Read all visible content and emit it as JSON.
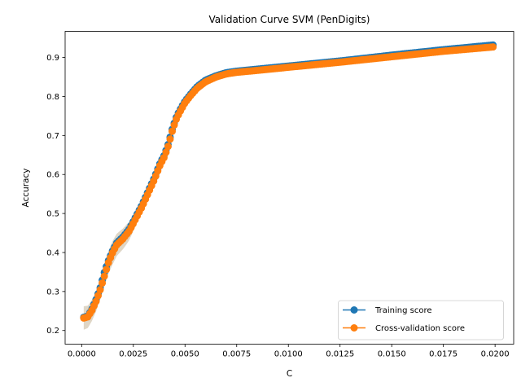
{
  "chart_data": {
    "type": "line",
    "title": "Validation Curve SVM (PenDigits)",
    "xlabel": "C",
    "ylabel": "Accuracy",
    "xlim": [
      -0.0008,
      0.0209
    ],
    "ylim": [
      0.165,
      0.967
    ],
    "grid": false,
    "legend_position": "lower-right",
    "x_ticks": [
      0.0,
      0.0025,
      0.005,
      0.0075,
      0.01,
      0.0125,
      0.015,
      0.0175,
      0.02
    ],
    "x_tick_labels": [
      "0.0000",
      "0.0025",
      "0.0050",
      "0.0075",
      "0.0100",
      "0.0125",
      "0.0150",
      "0.0175",
      "0.0200"
    ],
    "y_ticks": [
      0.2,
      0.3,
      0.4,
      0.5,
      0.6,
      0.7,
      0.8,
      0.9
    ],
    "y_tick_labels": [
      "0.2",
      "0.3",
      "0.4",
      "0.5",
      "0.6",
      "0.7",
      "0.8",
      "0.9"
    ],
    "x_range": [
      0.0001,
      0.0199
    ],
    "num_points": 200,
    "series": [
      {
        "name": "Training score",
        "color": "#1f77b4",
        "marker": "circle",
        "anchors": [
          [
            0.0001,
            0.234
          ],
          [
            0.0003,
            0.237
          ],
          [
            0.0005,
            0.255
          ],
          [
            0.0007,
            0.28
          ],
          [
            0.0009,
            0.31
          ],
          [
            0.0011,
            0.35
          ],
          [
            0.0013,
            0.38
          ],
          [
            0.0015,
            0.405
          ],
          [
            0.0017,
            0.425
          ],
          [
            0.002,
            0.44
          ],
          [
            0.0023,
            0.46
          ],
          [
            0.0026,
            0.49
          ],
          [
            0.0029,
            0.52
          ],
          [
            0.0032,
            0.555
          ],
          [
            0.0035,
            0.59
          ],
          [
            0.0038,
            0.63
          ],
          [
            0.004,
            0.65
          ],
          [
            0.0042,
            0.68
          ],
          [
            0.0044,
            0.72
          ],
          [
            0.0046,
            0.75
          ],
          [
            0.0048,
            0.77
          ],
          [
            0.005,
            0.788
          ],
          [
            0.0053,
            0.808
          ],
          [
            0.0056,
            0.826
          ],
          [
            0.006,
            0.842
          ],
          [
            0.0065,
            0.853
          ],
          [
            0.007,
            0.861
          ],
          [
            0.0075,
            0.865
          ],
          [
            0.0085,
            0.87
          ],
          [
            0.01,
            0.878
          ],
          [
            0.0125,
            0.891
          ],
          [
            0.015,
            0.906
          ],
          [
            0.0175,
            0.92
          ],
          [
            0.0199,
            0.932
          ]
        ]
      },
      {
        "name": "Cross-validation score",
        "color": "#ff7f0e",
        "marker": "circle",
        "anchors": [
          [
            0.0001,
            0.232
          ],
          [
            0.0003,
            0.235
          ],
          [
            0.0005,
            0.252
          ],
          [
            0.0007,
            0.275
          ],
          [
            0.0009,
            0.305
          ],
          [
            0.0011,
            0.34
          ],
          [
            0.0013,
            0.375
          ],
          [
            0.0015,
            0.4
          ],
          [
            0.0017,
            0.42
          ],
          [
            0.002,
            0.435
          ],
          [
            0.0023,
            0.455
          ],
          [
            0.0026,
            0.485
          ],
          [
            0.0029,
            0.515
          ],
          [
            0.0032,
            0.55
          ],
          [
            0.0035,
            0.585
          ],
          [
            0.0038,
            0.625
          ],
          [
            0.004,
            0.645
          ],
          [
            0.0042,
            0.675
          ],
          [
            0.0044,
            0.715
          ],
          [
            0.0046,
            0.745
          ],
          [
            0.0048,
            0.765
          ],
          [
            0.005,
            0.784
          ],
          [
            0.0053,
            0.804
          ],
          [
            0.0056,
            0.822
          ],
          [
            0.006,
            0.838
          ],
          [
            0.0065,
            0.85
          ],
          [
            0.007,
            0.858
          ],
          [
            0.0075,
            0.862
          ],
          [
            0.0085,
            0.867
          ],
          [
            0.01,
            0.875
          ],
          [
            0.0125,
            0.888
          ],
          [
            0.015,
            0.902
          ],
          [
            0.0175,
            0.916
          ],
          [
            0.0199,
            0.927
          ]
        ],
        "band_halfwidth": [
          [
            0.0001,
            0.03
          ],
          [
            0.0008,
            0.025
          ],
          [
            0.0015,
            0.03
          ],
          [
            0.0022,
            0.025
          ],
          [
            0.003,
            0.012
          ],
          [
            0.004,
            0.008
          ],
          [
            0.005,
            0.006
          ],
          [
            0.007,
            0.004
          ],
          [
            0.0199,
            0.004
          ]
        ]
      }
    ]
  }
}
